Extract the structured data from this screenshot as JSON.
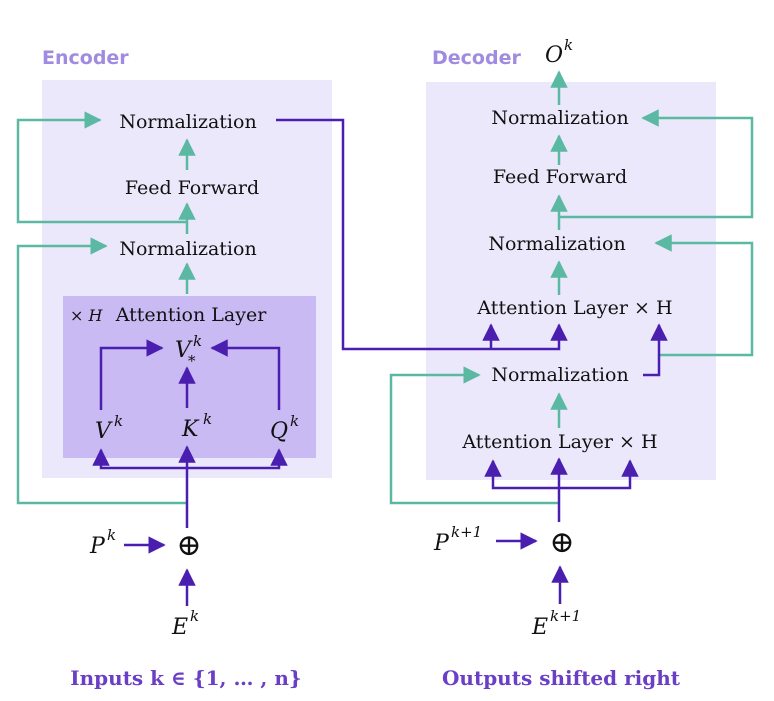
{
  "encoder": {
    "title": "Encoder",
    "norm_top": "Normalization",
    "feed_forward": "Feed Forward",
    "norm_bottom": "Normalization",
    "attention": {
      "repeat": "× H",
      "title": "Attention Layer",
      "v_star": "V",
      "v_star_sub": "*",
      "v_star_sup": "k",
      "v": "V",
      "v_sup": "k",
      "k": "K",
      "k_sup": "k",
      "q": "Q",
      "q_sup": "k"
    },
    "pos_input": "P",
    "pos_sup": "k",
    "emb_input": "E",
    "emb_sup": "k",
    "caption": "Inputs k ∈ {1, … , n}"
  },
  "decoder": {
    "title": "Decoder",
    "output": "O",
    "output_sup": "k",
    "norm_top": "Normalization",
    "feed_forward": "Feed Forward",
    "norm_mid": "Normalization",
    "attention_cross": "Attention Layer × H",
    "norm_bottom": "Normalization",
    "attention_self": "Attention Layer × H",
    "pos_input": "P",
    "pos_sup": "k+1",
    "emb_input": "E",
    "emb_sup": "k+1",
    "caption": "Outputs shifted right"
  },
  "operator": "⊕",
  "colors": {
    "block_bg": "#ece8fb",
    "attention_bg": "#c9baf3",
    "teal": "#5bb8a2",
    "purple": "#4a1fb0",
    "header": "#a08be0",
    "caption": "#6a3fc6"
  }
}
